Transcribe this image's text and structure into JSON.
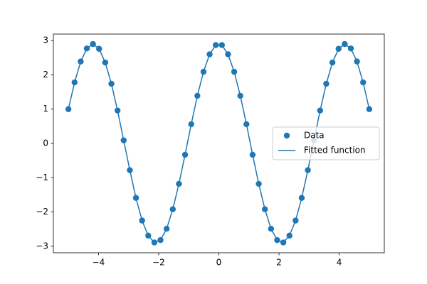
{
  "chart_data": {
    "type": "scatter-line",
    "x": [
      -5,
      -4.796,
      -4.592,
      -4.388,
      -4.184,
      -3.98,
      -3.776,
      -3.571,
      -3.367,
      -3.163,
      -2.959,
      -2.755,
      -2.551,
      -2.347,
      -2.143,
      -1.939,
      -1.735,
      -1.531,
      -1.327,
      -1.122,
      -0.918,
      -0.714,
      -0.51,
      -0.306,
      -0.102,
      0.102,
      0.306,
      0.51,
      0.714,
      0.918,
      1.122,
      1.327,
      1.531,
      1.735,
      1.939,
      2.143,
      2.347,
      2.551,
      2.755,
      2.959,
      3.163,
      3.367,
      3.571,
      3.776,
      3.98,
      4.184,
      4.388,
      4.592,
      4.796,
      5
    ],
    "series": [
      {
        "name": "Data",
        "kind": "scatter",
        "color": "#1f77b4",
        "values": [
          1.0,
          1.78,
          2.39,
          2.77,
          2.9,
          2.76,
          2.36,
          1.74,
          0.96,
          0.09,
          -0.78,
          -1.59,
          -2.25,
          -2.69,
          -2.89,
          -2.82,
          -2.49,
          -1.92,
          -1.18,
          -0.33,
          0.56,
          1.39,
          2.09,
          2.6,
          2.87,
          2.87,
          2.6,
          2.09,
          1.39,
          0.56,
          -0.33,
          -1.18,
          -1.92,
          -2.49,
          -2.82,
          -2.89,
          -2.69,
          -2.25,
          -1.59,
          -0.78,
          0.09,
          0.96,
          1.74,
          2.36,
          2.76,
          2.9,
          2.77,
          2.39,
          1.78,
          1.0
        ]
      },
      {
        "name": "Fitted function",
        "kind": "line",
        "color": "#1f77b4",
        "values": [
          1.0,
          1.78,
          2.39,
          2.77,
          2.9,
          2.76,
          2.36,
          1.74,
          0.96,
          0.09,
          -0.78,
          -1.59,
          -2.25,
          -2.69,
          -2.89,
          -2.82,
          -2.49,
          -1.92,
          -1.18,
          -0.33,
          0.56,
          1.39,
          2.09,
          2.6,
          2.87,
          2.87,
          2.6,
          2.09,
          1.39,
          0.56,
          -0.33,
          -1.18,
          -1.92,
          -2.49,
          -2.82,
          -2.89,
          -2.69,
          -2.25,
          -1.59,
          -0.78,
          0.09,
          0.96,
          1.74,
          2.36,
          2.76,
          2.9,
          2.77,
          2.39,
          1.78,
          1.0
        ]
      }
    ],
    "xlim": [
      -5.5,
      5.5
    ],
    "ylim": [
      -3.19,
      3.19
    ],
    "xticks": [
      {
        "value": -4,
        "label": "−4"
      },
      {
        "value": -2,
        "label": "−2"
      },
      0,
      2,
      4
    ],
    "yticks": [
      {
        "value": -3,
        "label": "−3"
      },
      {
        "value": -2,
        "label": "−2"
      },
      {
        "value": -1,
        "label": "−1"
      },
      0,
      1,
      2,
      3
    ],
    "legend": "center right"
  }
}
